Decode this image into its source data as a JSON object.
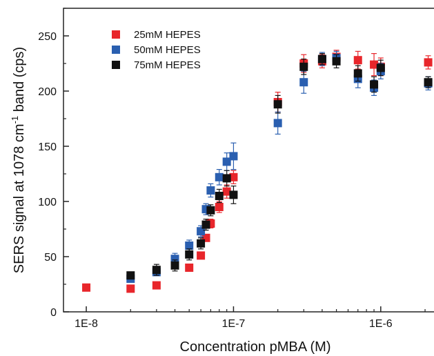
{
  "chart_data": {
    "type": "scatter",
    "xlabel": "Concentration pMBA (M)",
    "ylabel_main": "SERS signal at 1078 cm",
    "ylabel_sup": "-1",
    "ylabel_tail": " band (cps)",
    "x_scale": "log",
    "xlim": [
      7e-09,
      2.3e-06
    ],
    "ylim": [
      0,
      275
    ],
    "x_ticks": [
      {
        "value": 1e-08,
        "label": "1E-8"
      },
      {
        "value": 1e-07,
        "label": "1E-7"
      },
      {
        "value": 1e-06,
        "label": "1E-6"
      }
    ],
    "y_ticks": [
      {
        "value": 0,
        "label": "0"
      },
      {
        "value": 50,
        "label": "50"
      },
      {
        "value": 100,
        "label": "100"
      },
      {
        "value": 150,
        "label": "150"
      },
      {
        "value": 200,
        "label": "200"
      },
      {
        "value": 250,
        "label": "250"
      }
    ],
    "grid": false,
    "legend_position": "top-left",
    "series": [
      {
        "name": "25mM HEPES",
        "color": "#e8262b",
        "points": [
          {
            "x": 1e-08,
            "y": 22,
            "err": 2
          },
          {
            "x": 2e-08,
            "y": 21,
            "err": 2
          },
          {
            "x": 3e-08,
            "y": 24,
            "err": 2
          },
          {
            "x": 5e-08,
            "y": 40,
            "err": 3
          },
          {
            "x": 6e-08,
            "y": 51,
            "err": 3
          },
          {
            "x": 6.5e-08,
            "y": 67,
            "err": 3
          },
          {
            "x": 7e-08,
            "y": 80,
            "err": 4
          },
          {
            "x": 8e-08,
            "y": 95,
            "err": 5
          },
          {
            "x": 9e-08,
            "y": 109,
            "err": 6
          },
          {
            "x": 1e-07,
            "y": 122,
            "err": 6
          },
          {
            "x": 2e-07,
            "y": 190,
            "err": 9
          },
          {
            "x": 3e-07,
            "y": 225,
            "err": 8
          },
          {
            "x": 4e-07,
            "y": 227,
            "err": 6
          },
          {
            "x": 5e-07,
            "y": 231,
            "err": 6
          },
          {
            "x": 7e-07,
            "y": 228,
            "err": 8
          },
          {
            "x": 9e-07,
            "y": 224,
            "err": 10
          },
          {
            "x": 1e-06,
            "y": 222,
            "err": 8
          },
          {
            "x": 2.1e-06,
            "y": 226,
            "err": 6
          }
        ]
      },
      {
        "name": "50mM HEPES",
        "color": "#2a5fb0",
        "points": [
          {
            "x": 2e-08,
            "y": 30,
            "err": 3
          },
          {
            "x": 3e-08,
            "y": 36,
            "err": 3
          },
          {
            "x": 4e-08,
            "y": 48,
            "err": 5
          },
          {
            "x": 5e-08,
            "y": 60,
            "err": 5
          },
          {
            "x": 6e-08,
            "y": 73,
            "err": 5
          },
          {
            "x": 6.5e-08,
            "y": 93,
            "err": 5
          },
          {
            "x": 7e-08,
            "y": 110,
            "err": 6
          },
          {
            "x": 8e-08,
            "y": 122,
            "err": 7
          },
          {
            "x": 9e-08,
            "y": 136,
            "err": 8
          },
          {
            "x": 1e-07,
            "y": 141,
            "err": 12
          },
          {
            "x": 2e-07,
            "y": 171,
            "err": 10
          },
          {
            "x": 3e-07,
            "y": 208,
            "err": 10
          },
          {
            "x": 4e-07,
            "y": 229,
            "err": 6
          },
          {
            "x": 5e-07,
            "y": 230,
            "err": 6
          },
          {
            "x": 7e-07,
            "y": 211,
            "err": 8
          },
          {
            "x": 9e-07,
            "y": 203,
            "err": 7
          },
          {
            "x": 1e-06,
            "y": 218,
            "err": 7
          },
          {
            "x": 2.1e-06,
            "y": 207,
            "err": 6
          }
        ]
      },
      {
        "name": "75mM HEPES",
        "color": "#111111",
        "points": [
          {
            "x": 2e-08,
            "y": 33,
            "err": 3
          },
          {
            "x": 3e-08,
            "y": 38,
            "err": 5
          },
          {
            "x": 4e-08,
            "y": 42,
            "err": 5
          },
          {
            "x": 5e-08,
            "y": 52,
            "err": 5
          },
          {
            "x": 6e-08,
            "y": 62,
            "err": 5
          },
          {
            "x": 6.5e-08,
            "y": 79,
            "err": 5
          },
          {
            "x": 7e-08,
            "y": 92,
            "err": 5
          },
          {
            "x": 8e-08,
            "y": 105,
            "err": 6
          },
          {
            "x": 9e-08,
            "y": 121,
            "err": 7
          },
          {
            "x": 1e-07,
            "y": 106,
            "err": 8
          },
          {
            "x": 2e-07,
            "y": 188,
            "err": 8
          },
          {
            "x": 3e-07,
            "y": 222,
            "err": 7
          },
          {
            "x": 4e-07,
            "y": 229,
            "err": 5
          },
          {
            "x": 5e-07,
            "y": 227,
            "err": 6
          },
          {
            "x": 7e-07,
            "y": 216,
            "err": 7
          },
          {
            "x": 9e-07,
            "y": 206,
            "err": 7
          },
          {
            "x": 1e-06,
            "y": 221,
            "err": 7
          },
          {
            "x": 2.1e-06,
            "y": 208,
            "err": 5
          }
        ]
      }
    ]
  }
}
